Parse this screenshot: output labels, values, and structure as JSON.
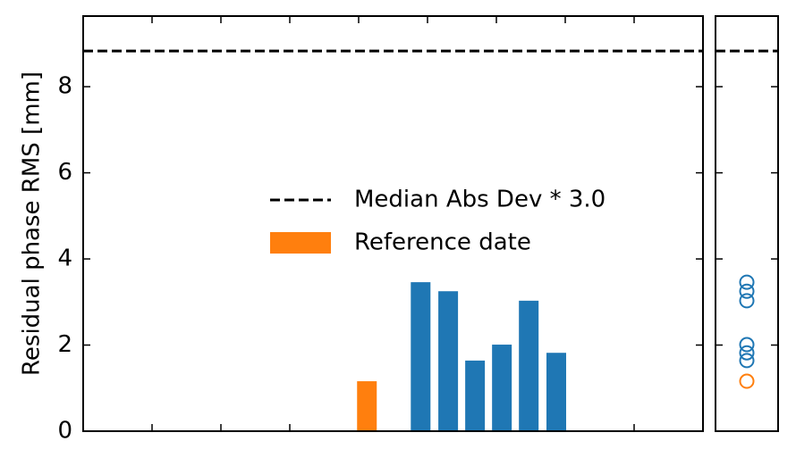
{
  "chart_data": [
    {
      "type": "bar",
      "y_label": "Residual phase RMS [mm]",
      "xlim": [
        0,
        9
      ],
      "xticks": [
        1,
        2,
        3,
        4,
        5,
        6,
        7,
        8
      ],
      "ylim": [
        0,
        9.64
      ],
      "yticks": [
        0,
        2,
        4,
        6,
        8
      ],
      "hline": {
        "name": "Median Abs Dev * 3.0",
        "value": 8.83,
        "color": "#000000"
      },
      "series": [
        {
          "name": "Reference date",
          "color": "#ff7f0e",
          "x": [
            4.12
          ],
          "values": [
            1.16
          ]
        },
        {
          "color": "#1f77b4",
          "x": [
            4.9,
            5.3,
            5.69,
            6.08,
            6.47,
            6.87
          ],
          "values": [
            3.46,
            3.25,
            1.64,
            2.01,
            3.03,
            1.82
          ]
        }
      ],
      "legend": "center"
    },
    {
      "type": "scatter",
      "ylim": [
        0,
        9.64
      ],
      "yticks": [
        0,
        2,
        4,
        6,
        8
      ],
      "hline": {
        "value": 8.83,
        "color": "#000000"
      },
      "series": [
        {
          "color": "#1f77b4",
          "values": [
            3.46,
            3.25,
            3.03,
            2.01,
            1.82,
            1.64
          ]
        },
        {
          "color": "#ff7f0e",
          "values": [
            1.16
          ]
        }
      ]
    }
  ]
}
